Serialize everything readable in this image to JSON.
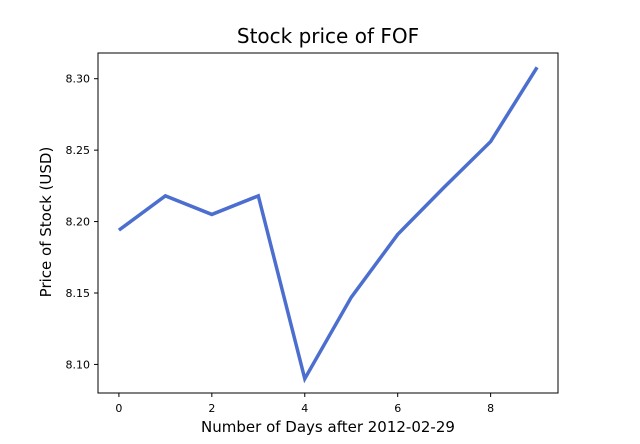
{
  "chart_data": {
    "type": "line",
    "title": "Stock price of FOF",
    "xlabel": "Number of Days after 2012-02-29",
    "ylabel": "Price of Stock (USD)",
    "x": [
      0,
      1,
      2,
      3,
      4,
      5,
      6,
      7,
      8,
      9
    ],
    "series": [
      {
        "values": [
          8.194,
          8.218,
          8.205,
          8.218,
          8.09,
          8.147,
          8.191,
          8.224,
          8.256,
          8.308
        ],
        "color": "#4c6fcf"
      }
    ],
    "xlim": [
      -0.45,
      9.45
    ],
    "ylim": [
      8.08,
      8.318
    ],
    "xticks": [
      0,
      2,
      4,
      6,
      8
    ],
    "xtick_labels": [
      "0",
      "2",
      "4",
      "6",
      "8"
    ],
    "yticks": [
      8.1,
      8.15,
      8.2,
      8.25,
      8.3
    ],
    "ytick_labels": [
      "8.10",
      "8.15",
      "8.20",
      "8.25",
      "8.30"
    ],
    "grid": false,
    "legend": false
  }
}
